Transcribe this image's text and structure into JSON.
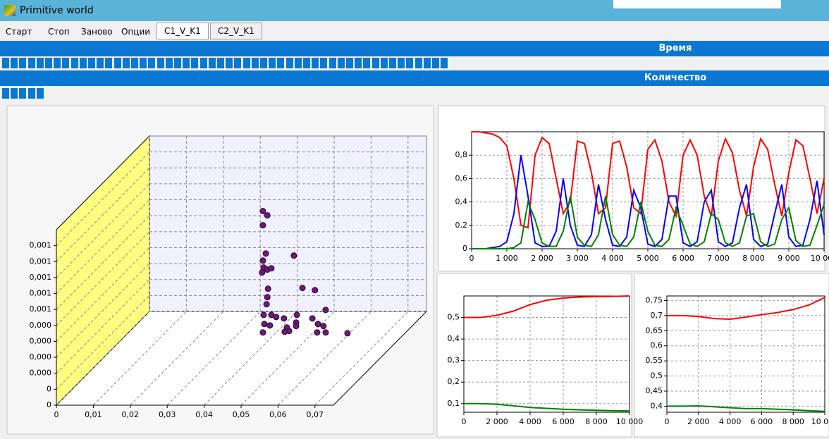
{
  "window": {
    "title": "Primitive world"
  },
  "menu": [
    "Старт",
    "Стоп",
    "Заново",
    "Опции"
  ],
  "tabs": [
    "C1_V_K1",
    "C2_V_K1"
  ],
  "progress": [
    {
      "label": "Время",
      "blocks": 52
    },
    {
      "label": "Количество",
      "blocks": 5
    }
  ],
  "chart_data": [
    {
      "type": "scatter3d",
      "color": "#6a1b7a",
      "x": [
        0.0559,
        0.0571,
        0.0559,
        0.0567,
        0.0559,
        0.0561,
        0.0571,
        0.0557,
        0.0582,
        0.0643,
        0.0573,
        0.0571,
        0.0666,
        0.07,
        0.0569,
        0.0561,
        0.0582,
        0.0595,
        0.0563,
        0.0578,
        0.0616,
        0.0651,
        0.0649,
        0.0624,
        0.063,
        0.0618,
        0.0559,
        0.0693,
        0.0708,
        0.0723,
        0.0729,
        0.0706,
        0.0729,
        0.0788,
        0.0649
      ],
      "values": [
        0.001217,
        0.00119,
        0.001128,
        0.000951,
        0.000907,
        0.000863,
        0.00085,
        0.000832,
        0.000858,
        0.000938,
        0.00073,
        0.000677,
        0.000735,
        0.000721,
        0.000633,
        0.000566,
        0.000566,
        0.000553,
        0.000509,
        0.0005,
        0.000544,
        0.000566,
        0.000518,
        0.000487,
        0.000465,
        0.00046,
        0.000456,
        0.000544,
        0.000509,
        0.000496,
        0.000597,
        0.000456,
        0.000456,
        0.000451,
        0.000496
      ],
      "xlim": [
        0,
        0.075
      ],
      "ylim": [
        0,
        0.0011
      ],
      "xticks": [
        0,
        {
          "value": 0.01,
          "label": "0,01"
        },
        {
          "value": 0.02,
          "label": "0,02"
        },
        {
          "value": 0.03,
          "label": "0,03"
        },
        {
          "value": 0.04,
          "label": "0,04"
        },
        {
          "value": 0.05,
          "label": "0,05"
        },
        {
          "value": 0.06,
          "label": "0,06"
        },
        {
          "value": 0.07,
          "label": "0,07"
        }
      ],
      "yticks": [
        0,
        {
          "value": 0.0001,
          "label": "0"
        },
        {
          "value": 0.0002,
          "label": "0,000"
        },
        {
          "value": 0.0003,
          "label": "0,000"
        },
        {
          "value": 0.0004,
          "label": "0,000"
        },
        {
          "value": 0.0005,
          "label": "0,000"
        },
        {
          "value": 0.0006,
          "label": "0,001"
        },
        {
          "value": 0.0007,
          "label": "0,001"
        },
        {
          "value": 0.0008,
          "label": "0,001"
        },
        {
          "value": 0.0009,
          "label": "0,001"
        },
        {
          "value": 0.001,
          "label": "0,001"
        }
      ],
      "grid": true
    },
    {
      "type": "line",
      "x": [
        0,
        200,
        400,
        600,
        800,
        1000,
        1200,
        1400,
        1600,
        1800,
        2000,
        2200,
        2400,
        2600,
        2800,
        3000,
        3200,
        3400,
        3600,
        3800,
        4000,
        4200,
        4400,
        4600,
        4800,
        5000,
        5200,
        5400,
        5600,
        5800,
        6000,
        6200,
        6400,
        6600,
        6800,
        7000,
        7200,
        7400,
        7600,
        7800,
        8000,
        8200,
        8400,
        8600,
        8800,
        9000,
        9200,
        9400,
        9600,
        9800,
        10000
      ],
      "series": [
        {
          "color": "#ff0000",
          "values": [
            1,
            1,
            0.99,
            0.98,
            0.95,
            0.88,
            0.6,
            0.2,
            0.18,
            0.8,
            0.95,
            0.9,
            0.6,
            0.3,
            0.4,
            0.92,
            0.9,
            0.65,
            0.3,
            0.35,
            0.9,
            0.92,
            0.7,
            0.35,
            0.3,
            0.85,
            0.93,
            0.75,
            0.4,
            0.28,
            0.8,
            0.93,
            0.8,
            0.45,
            0.28,
            0.75,
            0.94,
            0.82,
            0.5,
            0.28,
            0.7,
            0.94,
            0.85,
            0.55,
            0.28,
            0.65,
            0.93,
            0.88,
            0.6,
            0.3,
            0.6
          ]
        },
        {
          "color": "#0000ff",
          "values": [
            0,
            0,
            0,
            0.01,
            0.02,
            0.06,
            0.3,
            0.8,
            0.45,
            0.05,
            0.02,
            0.02,
            0.15,
            0.6,
            0.2,
            0.03,
            0.02,
            0.12,
            0.55,
            0.25,
            0.03,
            0.02,
            0.1,
            0.5,
            0.35,
            0.04,
            0.02,
            0.08,
            0.45,
            0.45,
            0.05,
            0.02,
            0.06,
            0.4,
            0.5,
            0.06,
            0.02,
            0.05,
            0.35,
            0.55,
            0.08,
            0.02,
            0.04,
            0.3,
            0.55,
            0.1,
            0.02,
            0.03,
            0.25,
            0.58,
            0.12
          ]
        },
        {
          "color": "#008000",
          "values": [
            0,
            0,
            0,
            0,
            0,
            0,
            0.01,
            0.05,
            0.4,
            0.25,
            0.05,
            0.02,
            0.02,
            0.15,
            0.45,
            0.1,
            0.03,
            0.02,
            0.12,
            0.45,
            0.12,
            0.03,
            0.02,
            0.1,
            0.4,
            0.15,
            0.03,
            0.02,
            0.08,
            0.35,
            0.2,
            0.04,
            0.02,
            0.06,
            0.3,
            0.25,
            0.05,
            0.02,
            0.05,
            0.28,
            0.3,
            0.06,
            0.02,
            0.04,
            0.25,
            0.35,
            0.07,
            0.02,
            0.03,
            0.2,
            0.38
          ]
        }
      ],
      "xlim": [
        0,
        10000
      ],
      "ylim": [
        0,
        1
      ],
      "xticks": [
        0,
        {
          "value": 1000,
          "label": "1 000"
        },
        {
          "value": 2000,
          "label": "2 000"
        },
        {
          "value": 3000,
          "label": "3 000"
        },
        {
          "value": 4000,
          "label": "4 000"
        },
        {
          "value": 5000,
          "label": "5 000"
        },
        {
          "value": 6000,
          "label": "6 000"
        },
        {
          "value": 7000,
          "label": "7 000"
        },
        {
          "value": 8000,
          "label": "8 000"
        },
        {
          "value": 9000,
          "label": "9 000"
        },
        {
          "value": 10000,
          "label": "10 000"
        }
      ],
      "yticks": [
        0,
        {
          "value": 0.2,
          "label": "0,2"
        },
        {
          "value": 0.4,
          "label": "0,4"
        },
        {
          "value": 0.6,
          "label": "0,6"
        },
        {
          "value": 0.8,
          "label": "0,8"
        }
      ],
      "grid": true
    },
    {
      "type": "line",
      "x": [
        0,
        1000,
        2000,
        3000,
        4000,
        5000,
        6000,
        7000,
        8000,
        9000,
        10000
      ],
      "series": [
        {
          "color": "#ff0000",
          "values": [
            0.5,
            0.5,
            0.51,
            0.53,
            0.56,
            0.58,
            0.59,
            0.595,
            0.597,
            0.598,
            0.6
          ]
        },
        {
          "color": "#008000",
          "values": [
            0.1,
            0.1,
            0.097,
            0.09,
            0.082,
            0.078,
            0.074,
            0.071,
            0.069,
            0.067,
            0.066
          ]
        }
      ],
      "xlim": [
        0,
        10000
      ],
      "ylim": [
        0.06,
        0.6
      ],
      "xticks": [
        0,
        {
          "value": 2000,
          "label": "2 000"
        },
        {
          "value": 4000,
          "label": "4 000"
        },
        {
          "value": 6000,
          "label": "6 000"
        },
        {
          "value": 8000,
          "label": "8 000"
        },
        {
          "value": 10000,
          "label": "10 000"
        }
      ],
      "yticks": [
        {
          "value": 0.1,
          "label": "0,1"
        },
        {
          "value": 0.2,
          "label": "0,2"
        },
        {
          "value": 0.3,
          "label": "0,3"
        },
        {
          "value": 0.4,
          "label": "0,4"
        },
        {
          "value": 0.5,
          "label": "0,5"
        }
      ],
      "grid": true
    },
    {
      "type": "line",
      "x": [
        0,
        1000,
        2000,
        3000,
        4000,
        5000,
        6000,
        7000,
        8000,
        9000,
        10000
      ],
      "series": [
        {
          "color": "#ff0000",
          "values": [
            0.7,
            0.7,
            0.697,
            0.69,
            0.688,
            0.695,
            0.703,
            0.71,
            0.72,
            0.735,
            0.76
          ]
        },
        {
          "color": "#008000",
          "values": [
            0.4,
            0.4,
            0.401,
            0.398,
            0.395,
            0.392,
            0.392,
            0.39,
            0.388,
            0.385,
            0.383
          ]
        }
      ],
      "xlim": [
        0,
        10000
      ],
      "ylim": [
        0.38,
        0.765
      ],
      "xticks": [
        0,
        {
          "value": 2000,
          "label": "2 000"
        },
        {
          "value": 4000,
          "label": "4 000"
        },
        {
          "value": 6000,
          "label": "6 000"
        },
        {
          "value": 8000,
          "label": "8 000"
        },
        {
          "value": 10000,
          "label": "10 000"
        }
      ],
      "yticks": [
        {
          "value": 0.4,
          "label": "0,4"
        },
        {
          "value": 0.45,
          "label": "0,45"
        },
        {
          "value": 0.5,
          "label": "0,5"
        },
        {
          "value": 0.55,
          "label": "0,55"
        },
        {
          "value": 0.6,
          "label": "0,6"
        },
        {
          "value": 0.65,
          "label": "0,65"
        },
        {
          "value": 0.7,
          "label": "0,7"
        },
        {
          "value": 0.75,
          "label": "0,75"
        }
      ],
      "grid": true
    }
  ]
}
